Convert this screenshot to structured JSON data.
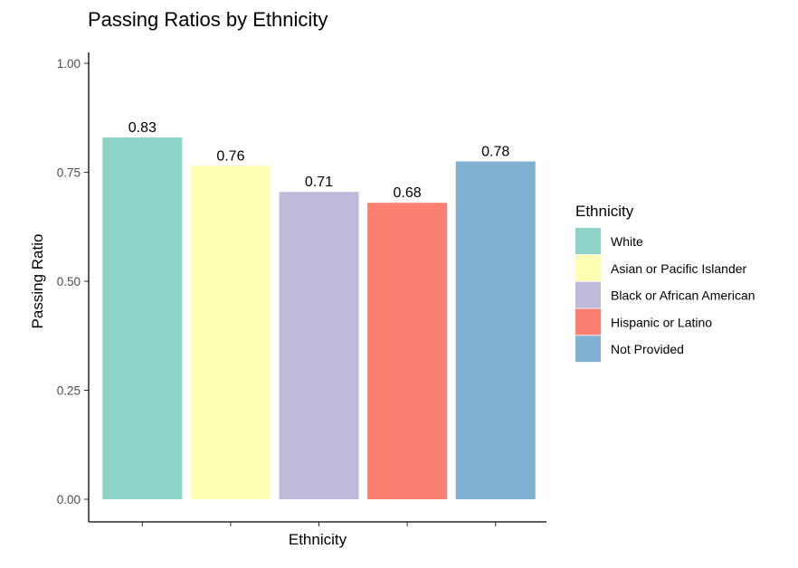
{
  "chart_data": {
    "type": "bar",
    "title": "Passing Ratios by Ethnicity",
    "xlabel": "Ethnicity",
    "ylabel": "Passing Ratio",
    "ylim": [
      0,
      1.0
    ],
    "yticks": [
      0.0,
      0.25,
      0.5,
      0.75,
      1.0
    ],
    "ytick_labels": [
      "0.00",
      "0.25",
      "0.50",
      "0.75",
      "1.00"
    ],
    "categories": [
      "White",
      "Asian or Pacific Islander",
      "Black or African American",
      "Hispanic or Latino",
      "Not Provided"
    ],
    "values": [
      0.83,
      0.765,
      0.705,
      0.68,
      0.775
    ],
    "data_labels": [
      "0.83",
      "0.76",
      "0.71",
      "0.68",
      "0.78"
    ],
    "colors": [
      "#8DD3C7",
      "#FFFFB3",
      "#BEBADA",
      "#FB8072",
      "#80B1D3"
    ],
    "grid": false,
    "legend": {
      "title": "Ethnicity",
      "position": "right",
      "entries": [
        "White",
        "Asian or Pacific Islander",
        "Black or African American",
        "Hispanic or Latino",
        "Not Provided"
      ]
    }
  }
}
